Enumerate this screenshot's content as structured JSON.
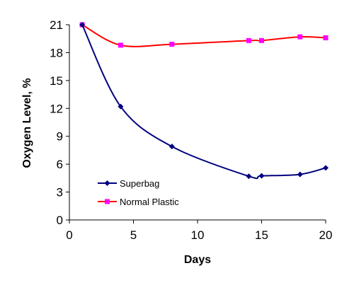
{
  "chart_data": {
    "type": "line",
    "xlabel": "Days",
    "ylabel": "Oxygen Level, %",
    "xlim": [
      0,
      20
    ],
    "ylim": [
      0,
      21
    ],
    "x_ticks": [
      0,
      5,
      10,
      15,
      20
    ],
    "y_ticks": [
      0,
      3,
      6,
      9,
      12,
      15,
      18,
      21
    ],
    "grid": false,
    "legend_position": "lower-left",
    "series": [
      {
        "name": "Superbag",
        "color": "#000080",
        "marker": "diamond",
        "points": [
          {
            "x": 1,
            "y": 21.0
          },
          {
            "x": 4,
            "y": 12.2
          },
          {
            "x": 8,
            "y": 7.9
          },
          {
            "x": 14,
            "y": 4.7
          },
          {
            "x": 15,
            "y": 4.75
          },
          {
            "x": 18,
            "y": 4.9
          },
          {
            "x": 20,
            "y": 5.6
          }
        ]
      },
      {
        "name": "Normal Plastic",
        "color": "#FF0000",
        "marker_color": "#FF00FF",
        "marker": "square",
        "points": [
          {
            "x": 1,
            "y": 21.0
          },
          {
            "x": 4,
            "y": 18.8
          },
          {
            "x": 8,
            "y": 18.9
          },
          {
            "x": 14,
            "y": 19.3
          },
          {
            "x": 15,
            "y": 19.3
          },
          {
            "x": 18,
            "y": 19.7
          },
          {
            "x": 20,
            "y": 19.6
          }
        ]
      }
    ]
  }
}
